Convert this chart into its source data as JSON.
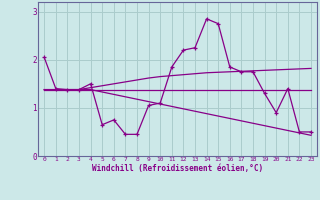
{
  "xlabel": "Windchill (Refroidissement éolien,°C)",
  "xlim": [
    -0.5,
    23.5
  ],
  "ylim": [
    0,
    3.2
  ],
  "yticks": [
    0,
    1,
    2,
    3
  ],
  "xticks": [
    0,
    1,
    2,
    3,
    4,
    5,
    6,
    7,
    8,
    9,
    10,
    11,
    12,
    13,
    14,
    15,
    16,
    17,
    18,
    19,
    20,
    21,
    22,
    23
  ],
  "bg_color": "#cce8e8",
  "line_color": "#880088",
  "grid_color": "#aacccc",
  "lines": [
    {
      "y": [
        2.05,
        1.4,
        1.38,
        1.38,
        1.5,
        0.65,
        0.75,
        0.45,
        0.45,
        1.05,
        1.1,
        1.85,
        2.2,
        2.25,
        2.85,
        2.75,
        1.85,
        1.75,
        1.75,
        1.3,
        0.9,
        1.4,
        0.5,
        0.5
      ],
      "has_markers": true
    },
    {
      "y": [
        1.38,
        1.38,
        1.38,
        1.38,
        1.38,
        1.38,
        1.38,
        1.38,
        1.38,
        1.38,
        1.38,
        1.38,
        1.38,
        1.38,
        1.38,
        1.38,
        1.38,
        1.38,
        1.38,
        1.38,
        1.38,
        1.38,
        1.38,
        1.38
      ],
      "has_markers": false
    },
    {
      "y": [
        1.38,
        1.38,
        1.38,
        1.38,
        1.42,
        1.46,
        1.5,
        1.54,
        1.58,
        1.62,
        1.65,
        1.67,
        1.69,
        1.71,
        1.73,
        1.74,
        1.75,
        1.76,
        1.77,
        1.78,
        1.79,
        1.8,
        1.81,
        1.82
      ],
      "has_markers": false
    },
    {
      "y": [
        1.38,
        1.38,
        1.38,
        1.38,
        1.38,
        1.33,
        1.28,
        1.23,
        1.18,
        1.13,
        1.08,
        1.03,
        0.98,
        0.93,
        0.88,
        0.83,
        0.78,
        0.73,
        0.68,
        0.63,
        0.58,
        0.53,
        0.48,
        0.43
      ],
      "has_markers": false
    }
  ]
}
